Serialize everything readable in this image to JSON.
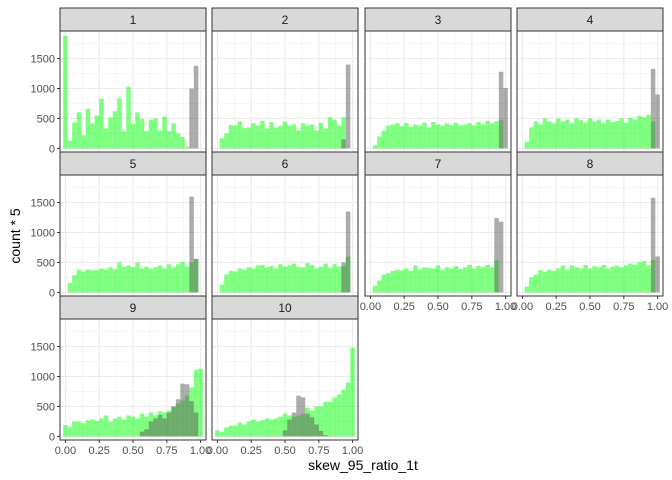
{
  "chart_data": {
    "type": "bar",
    "subtype": "faceted-histogram-overlay",
    "xlabel": "skew_95_ratio_1t",
    "ylabel": "count * 5",
    "xlim": [
      -0.04,
      1.04
    ],
    "ylim": [
      -60,
      1960
    ],
    "x_ticks": [
      0.0,
      0.25,
      0.5,
      0.75,
      1.0
    ],
    "x_tick_labels": [
      "0.00",
      "0.25",
      "0.50",
      "0.75",
      "1.00"
    ],
    "y_ticks": [
      0,
      500,
      1000,
      1500
    ],
    "y_tick_labels": [
      "0",
      "500",
      "1000",
      "1500"
    ],
    "grid": true,
    "bin_width": 0.0333,
    "bin_centers": [
      0.0,
      0.0333,
      0.0667,
      0.1,
      0.1333,
      0.1667,
      0.2,
      0.2333,
      0.2667,
      0.3,
      0.3333,
      0.3667,
      0.4,
      0.4333,
      0.4667,
      0.5,
      0.5333,
      0.5667,
      0.6,
      0.6333,
      0.6667,
      0.7,
      0.7333,
      0.7667,
      0.8,
      0.8333,
      0.8667,
      0.9,
      0.9333,
      0.9667,
      1.0
    ],
    "series_colors": {
      "green": "#00ff00",
      "gray": "#595959"
    },
    "facets": [
      {
        "label": "1",
        "green": [
          1880,
          130,
          430,
          600,
          220,
          660,
          420,
          550,
          830,
          330,
          510,
          620,
          840,
          290,
          1030,
          410,
          600,
          490,
          290,
          480,
          500,
          300,
          530,
          290,
          420,
          250,
          190,
          30,
          0,
          0,
          0
        ],
        "gray": [
          0,
          0,
          0,
          0,
          0,
          0,
          0,
          0,
          0,
          0,
          0,
          0,
          0,
          0,
          0,
          0,
          0,
          0,
          0,
          0,
          0,
          0,
          0,
          0,
          0,
          0,
          0,
          0,
          1000,
          1380,
          0
        ]
      },
      {
        "label": "2",
        "green": [
          0,
          170,
          250,
          390,
          380,
          450,
          340,
          350,
          420,
          380,
          460,
          330,
          440,
          350,
          380,
          450,
          380,
          400,
          300,
          420,
          380,
          400,
          300,
          430,
          330,
          520,
          480,
          380,
          520,
          0,
          0
        ],
        "gray": [
          0,
          0,
          0,
          0,
          0,
          0,
          0,
          0,
          0,
          0,
          0,
          0,
          0,
          0,
          0,
          0,
          0,
          0,
          0,
          0,
          0,
          0,
          0,
          0,
          0,
          0,
          0,
          0,
          150,
          1400,
          0
        ]
      },
      {
        "label": "3",
        "green": [
          0,
          50,
          200,
          300,
          380,
          400,
          420,
          370,
          420,
          360,
          400,
          380,
          430,
          350,
          440,
          400,
          380,
          420,
          390,
          430,
          380,
          400,
          420,
          380,
          440,
          400,
          460,
          420,
          450,
          480,
          0
        ],
        "gray": [
          0,
          0,
          0,
          0,
          0,
          0,
          0,
          0,
          0,
          0,
          0,
          0,
          0,
          0,
          0,
          0,
          0,
          0,
          0,
          0,
          0,
          0,
          0,
          0,
          0,
          0,
          0,
          0,
          0,
          1280,
          1010
        ]
      },
      {
        "label": "4",
        "green": [
          0,
          110,
          350,
          450,
          400,
          500,
          450,
          420,
          500,
          450,
          480,
          420,
          500,
          470,
          430,
          500,
          450,
          480,
          420,
          480,
          440,
          460,
          500,
          430,
          510,
          480,
          540,
          520,
          560,
          450,
          0
        ],
        "gray": [
          0,
          0,
          0,
          0,
          0,
          0,
          0,
          0,
          0,
          0,
          0,
          0,
          0,
          0,
          0,
          0,
          0,
          0,
          0,
          0,
          0,
          0,
          0,
          0,
          0,
          0,
          0,
          0,
          0,
          1330,
          900
        ]
      },
      {
        "label": "5",
        "green": [
          0,
          160,
          290,
          380,
          350,
          380,
          370,
          370,
          400,
          380,
          420,
          390,
          500,
          430,
          450,
          420,
          500,
          400,
          430,
          400,
          420,
          450,
          400,
          470,
          420,
          470,
          510,
          430,
          500,
          560,
          0
        ],
        "gray": [
          0,
          0,
          0,
          0,
          0,
          0,
          0,
          0,
          0,
          0,
          0,
          0,
          0,
          0,
          0,
          0,
          0,
          0,
          0,
          0,
          0,
          0,
          0,
          0,
          0,
          0,
          0,
          0,
          1600,
          560,
          0
        ]
      },
      {
        "label": "6",
        "green": [
          0,
          130,
          300,
          360,
          350,
          400,
          380,
          420,
          400,
          450,
          460,
          420,
          440,
          400,
          470,
          430,
          450,
          480,
          430,
          420,
          490,
          460,
          400,
          430,
          480,
          410,
          470,
          430,
          440,
          600,
          0
        ],
        "gray": [
          0,
          0,
          0,
          0,
          0,
          0,
          0,
          0,
          0,
          0,
          0,
          0,
          0,
          0,
          0,
          0,
          0,
          0,
          0,
          0,
          0,
          0,
          0,
          0,
          0,
          0,
          0,
          0,
          500,
          1350,
          0
        ]
      },
      {
        "label": "7",
        "green": [
          0,
          110,
          200,
          300,
          320,
          360,
          380,
          370,
          400,
          360,
          450,
          380,
          420,
          410,
          400,
          450,
          380,
          420,
          400,
          440,
          390,
          420,
          460,
          400,
          440,
          420,
          460,
          420,
          540,
          0,
          0
        ],
        "gray": [
          0,
          0,
          0,
          0,
          0,
          0,
          0,
          0,
          0,
          0,
          0,
          0,
          0,
          0,
          0,
          0,
          0,
          0,
          0,
          0,
          0,
          0,
          0,
          0,
          0,
          0,
          0,
          0,
          1240,
          1180,
          0
        ]
      },
      {
        "label": "8",
        "green": [
          0,
          100,
          250,
          300,
          370,
          350,
          380,
          360,
          400,
          450,
          380,
          450,
          420,
          400,
          460,
          400,
          440,
          420,
          460,
          400,
          430,
          450,
          420,
          450,
          480,
          460,
          500,
          520,
          450,
          540,
          0
        ],
        "gray": [
          0,
          0,
          0,
          0,
          0,
          0,
          0,
          0,
          0,
          0,
          0,
          0,
          0,
          0,
          0,
          0,
          0,
          0,
          0,
          0,
          0,
          0,
          0,
          0,
          0,
          0,
          0,
          0,
          0,
          1580,
          600
        ]
      },
      {
        "label": "9",
        "green": [
          190,
          160,
          250,
          250,
          220,
          270,
          280,
          260,
          300,
          350,
          250,
          300,
          330,
          280,
          350,
          330,
          300,
          380,
          330,
          400,
          350,
          420,
          400,
          430,
          500,
          550,
          600,
          680,
          820,
          1110,
          1130
        ],
        "gray": [
          0,
          0,
          0,
          0,
          0,
          0,
          0,
          0,
          0,
          0,
          0,
          0,
          0,
          0,
          0,
          0,
          0,
          80,
          120,
          250,
          300,
          360,
          300,
          400,
          500,
          620,
          880,
          870,
          590,
          400,
          0
        ]
      },
      {
        "label": "10",
        "green": [
          100,
          80,
          150,
          180,
          180,
          230,
          200,
          250,
          280,
          250,
          270,
          300,
          280,
          300,
          330,
          380,
          350,
          330,
          350,
          380,
          480,
          430,
          500,
          500,
          580,
          580,
          650,
          700,
          780,
          900,
          1480
        ],
        "gray": [
          0,
          0,
          0,
          0,
          0,
          0,
          0,
          0,
          0,
          0,
          0,
          0,
          0,
          0,
          0,
          100,
          280,
          400,
          680,
          650,
          380,
          320,
          200,
          90,
          20,
          0,
          0,
          0,
          0,
          0,
          0
        ]
      }
    ]
  }
}
